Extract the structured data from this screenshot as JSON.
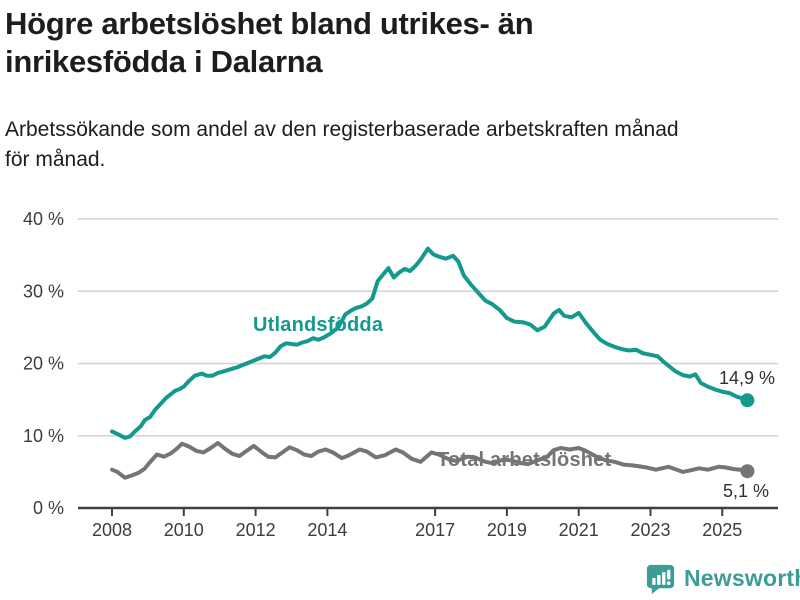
{
  "chart_data": {
    "type": "line",
    "title_lines": [
      "Högre arbetslöshet bland utrikes- än",
      "inrikesfödda i Dalarna"
    ],
    "subtitle_lines": [
      "Arbetssökande som andel av den registerbaserade arbetskraften månad",
      "för månad."
    ],
    "unit": "%",
    "ylim": [
      0,
      40
    ],
    "y_ticks": [
      0,
      10,
      20,
      30,
      40
    ],
    "y_tick_labels": [
      "0 %",
      "10 %",
      "20 %",
      "30 %",
      "40 %"
    ],
    "x_ticks": [
      2008,
      2010,
      2012,
      2014,
      2017,
      2019,
      2021,
      2023,
      2025
    ],
    "x_tick_labels": [
      "2008",
      "2010",
      "2012",
      "2014",
      "2017",
      "2019",
      "2021",
      "2023",
      "2025"
    ],
    "x_range": [
      2008,
      2025.7
    ],
    "grid": "horizontal",
    "legend_position": "inline-labels",
    "series": [
      {
        "name": "Utlandsfödda",
        "color": "#13998e",
        "end_label": "14,9 %",
        "end_value": 14.9,
        "points": [
          [
            2008.0,
            10.6
          ],
          [
            2008.17,
            10.2
          ],
          [
            2008.36,
            9.7
          ],
          [
            2008.5,
            9.9
          ],
          [
            2008.64,
            10.6
          ],
          [
            2008.8,
            11.3
          ],
          [
            2008.92,
            12.2
          ],
          [
            2009.06,
            12.6
          ],
          [
            2009.2,
            13.6
          ],
          [
            2009.35,
            14.4
          ],
          [
            2009.5,
            15.2
          ],
          [
            2009.75,
            16.2
          ],
          [
            2009.9,
            16.5
          ],
          [
            2010.0,
            16.8
          ],
          [
            2010.15,
            17.6
          ],
          [
            2010.3,
            18.3
          ],
          [
            2010.5,
            18.6
          ],
          [
            2010.65,
            18.3
          ],
          [
            2010.8,
            18.3
          ],
          [
            2010.95,
            18.7
          ],
          [
            2011.1,
            18.9
          ],
          [
            2011.3,
            19.2
          ],
          [
            2011.5,
            19.5
          ],
          [
            2011.65,
            19.8
          ],
          [
            2011.8,
            20.1
          ],
          [
            2011.95,
            20.4
          ],
          [
            2012.1,
            20.7
          ],
          [
            2012.25,
            21.0
          ],
          [
            2012.4,
            20.9
          ],
          [
            2012.55,
            21.5
          ],
          [
            2012.7,
            22.4
          ],
          [
            2012.85,
            22.8
          ],
          [
            2013.0,
            22.7
          ],
          [
            2013.15,
            22.6
          ],
          [
            2013.3,
            22.9
          ],
          [
            2013.45,
            23.1
          ],
          [
            2013.6,
            23.5
          ],
          [
            2013.75,
            23.3
          ],
          [
            2013.9,
            23.6
          ],
          [
            2014.1,
            24.2
          ],
          [
            2014.3,
            25.0
          ],
          [
            2014.5,
            26.8
          ],
          [
            2014.65,
            27.3
          ],
          [
            2014.8,
            27.7
          ],
          [
            2014.95,
            27.9
          ],
          [
            2015.1,
            28.3
          ],
          [
            2015.25,
            29.0
          ],
          [
            2015.4,
            31.4
          ],
          [
            2015.55,
            32.3
          ],
          [
            2015.7,
            33.2
          ],
          [
            2015.85,
            31.9
          ],
          [
            2016.0,
            32.6
          ],
          [
            2016.15,
            33.1
          ],
          [
            2016.3,
            32.8
          ],
          [
            2016.45,
            33.5
          ],
          [
            2016.6,
            34.4
          ],
          [
            2016.8,
            35.9
          ],
          [
            2016.95,
            35.1
          ],
          [
            2017.1,
            34.8
          ],
          [
            2017.3,
            34.5
          ],
          [
            2017.5,
            34.9
          ],
          [
            2017.65,
            34.1
          ],
          [
            2017.8,
            32.2
          ],
          [
            2018.0,
            30.9
          ],
          [
            2018.2,
            29.8
          ],
          [
            2018.4,
            28.7
          ],
          [
            2018.6,
            28.2
          ],
          [
            2018.8,
            27.4
          ],
          [
            2019.0,
            26.3
          ],
          [
            2019.2,
            25.8
          ],
          [
            2019.45,
            25.7
          ],
          [
            2019.65,
            25.4
          ],
          [
            2019.85,
            24.6
          ],
          [
            2020.05,
            25.1
          ],
          [
            2020.3,
            26.9
          ],
          [
            2020.45,
            27.4
          ],
          [
            2020.6,
            26.6
          ],
          [
            2020.8,
            26.4
          ],
          [
            2021.0,
            27.0
          ],
          [
            2021.2,
            25.6
          ],
          [
            2021.4,
            24.4
          ],
          [
            2021.6,
            23.3
          ],
          [
            2021.8,
            22.7
          ],
          [
            2022.0,
            22.3
          ],
          [
            2022.2,
            22.0
          ],
          [
            2022.4,
            21.8
          ],
          [
            2022.6,
            21.9
          ],
          [
            2022.8,
            21.4
          ],
          [
            2023.0,
            21.2
          ],
          [
            2023.2,
            21.0
          ],
          [
            2023.35,
            20.3
          ],
          [
            2023.5,
            19.7
          ],
          [
            2023.7,
            18.9
          ],
          [
            2023.9,
            18.4
          ],
          [
            2024.1,
            18.2
          ],
          [
            2024.25,
            18.5
          ],
          [
            2024.4,
            17.3
          ],
          [
            2024.6,
            16.8
          ],
          [
            2024.8,
            16.4
          ],
          [
            2025.0,
            16.1
          ],
          [
            2025.2,
            15.9
          ],
          [
            2025.4,
            15.4
          ],
          [
            2025.55,
            15.2
          ],
          [
            2025.7,
            14.9
          ]
        ]
      },
      {
        "name": "Total arbetslöshet",
        "color": "#757575",
        "end_label": "5,1 %",
        "end_value": 5.1,
        "points": [
          [
            2008.0,
            5.3
          ],
          [
            2008.15,
            5.0
          ],
          [
            2008.36,
            4.2
          ],
          [
            2008.55,
            4.5
          ],
          [
            2008.75,
            4.9
          ],
          [
            2008.9,
            5.4
          ],
          [
            2009.05,
            6.3
          ],
          [
            2009.25,
            7.4
          ],
          [
            2009.45,
            7.1
          ],
          [
            2009.65,
            7.6
          ],
          [
            2009.8,
            8.2
          ],
          [
            2009.95,
            8.9
          ],
          [
            2010.15,
            8.5
          ],
          [
            2010.35,
            7.9
          ],
          [
            2010.55,
            7.7
          ],
          [
            2010.75,
            8.3
          ],
          [
            2010.95,
            9.0
          ],
          [
            2011.15,
            8.2
          ],
          [
            2011.35,
            7.5
          ],
          [
            2011.55,
            7.2
          ],
          [
            2011.75,
            7.9
          ],
          [
            2011.95,
            8.6
          ],
          [
            2012.15,
            7.8
          ],
          [
            2012.35,
            7.1
          ],
          [
            2012.55,
            7.0
          ],
          [
            2012.75,
            7.7
          ],
          [
            2012.95,
            8.4
          ],
          [
            2013.15,
            8.0
          ],
          [
            2013.35,
            7.4
          ],
          [
            2013.55,
            7.2
          ],
          [
            2013.75,
            7.8
          ],
          [
            2013.95,
            8.1
          ],
          [
            2014.15,
            7.7
          ],
          [
            2014.4,
            6.9
          ],
          [
            2014.6,
            7.3
          ],
          [
            2014.9,
            8.1
          ],
          [
            2015.1,
            7.8
          ],
          [
            2015.35,
            7.0
          ],
          [
            2015.6,
            7.3
          ],
          [
            2015.9,
            8.1
          ],
          [
            2016.1,
            7.7
          ],
          [
            2016.35,
            6.8
          ],
          [
            2016.6,
            6.4
          ],
          [
            2016.9,
            7.7
          ],
          [
            2017.1,
            7.4
          ],
          [
            2017.4,
            6.7
          ],
          [
            2017.6,
            6.5
          ],
          [
            2017.9,
            7.1
          ],
          [
            2018.1,
            7.0
          ],
          [
            2018.4,
            6.4
          ],
          [
            2018.6,
            6.2
          ],
          [
            2018.9,
            6.7
          ],
          [
            2019.1,
            6.6
          ],
          [
            2019.4,
            6.2
          ],
          [
            2019.6,
            6.1
          ],
          [
            2019.9,
            6.7
          ],
          [
            2020.1,
            7.0
          ],
          [
            2020.3,
            8.0
          ],
          [
            2020.5,
            8.3
          ],
          [
            2020.75,
            8.1
          ],
          [
            2021.0,
            8.3
          ],
          [
            2021.2,
            7.9
          ],
          [
            2021.5,
            7.1
          ],
          [
            2021.75,
            6.6
          ],
          [
            2022.0,
            6.4
          ],
          [
            2022.25,
            6.0
          ],
          [
            2022.5,
            5.9
          ],
          [
            2022.65,
            5.8
          ],
          [
            2022.9,
            5.6
          ],
          [
            2023.15,
            5.3
          ],
          [
            2023.5,
            5.7
          ],
          [
            2023.9,
            5.0
          ],
          [
            2024.1,
            5.2
          ],
          [
            2024.35,
            5.5
          ],
          [
            2024.6,
            5.3
          ],
          [
            2024.9,
            5.7
          ],
          [
            2025.1,
            5.6
          ],
          [
            2025.3,
            5.4
          ],
          [
            2025.5,
            5.3
          ],
          [
            2025.7,
            5.1
          ]
        ]
      }
    ]
  },
  "footer": {
    "brand": "Newsworthy",
    "brand_color": "#3c9d96"
  }
}
